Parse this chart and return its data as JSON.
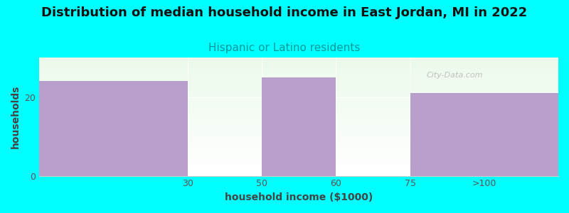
{
  "title": "Distribution of median household income in East Jordan, MI in 2022",
  "subtitle": "Hispanic or Latino residents",
  "xlabel": "household income ($1000)",
  "ylabel": "households",
  "background_color": "#00FFFF",
  "bar_color": "#B9A0CC",
  "categories": [
    "30",
    "50",
    "60",
    "75",
    ">100"
  ],
  "bar_lefts": [
    0,
    2,
    3,
    4,
    5
  ],
  "bar_rights": [
    2,
    2,
    4,
    5,
    7
  ],
  "bar_values": [
    24,
    0,
    25,
    0,
    21
  ],
  "tick_positions": [
    2,
    3,
    4,
    5,
    6
  ],
  "tick_labels": [
    "30",
    "50",
    "60",
    "75",
    ">100"
  ],
  "ylim": [
    0,
    30
  ],
  "yticks": [
    0,
    20
  ],
  "xlim": [
    0,
    7
  ],
  "title_fontsize": 13,
  "subtitle_fontsize": 11,
  "axis_label_fontsize": 10,
  "tick_fontsize": 9,
  "watermark": "City-Data.com"
}
